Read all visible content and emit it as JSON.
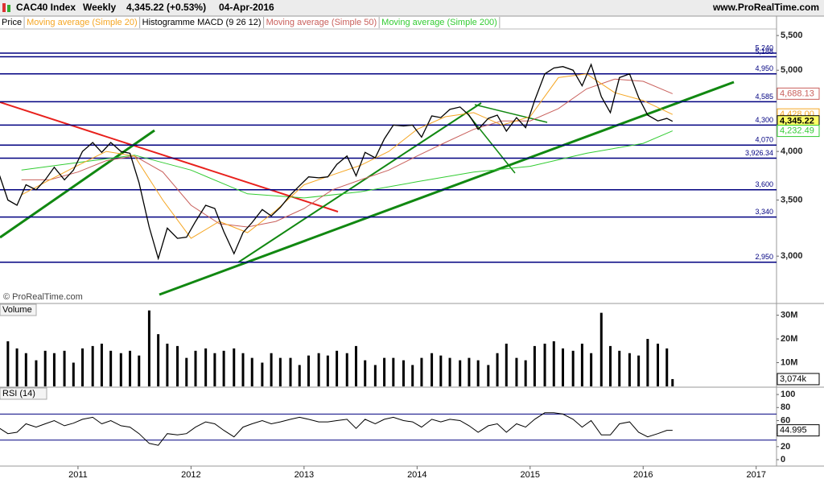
{
  "header": {
    "instrument": "CAC40 Index",
    "period": "Weekly",
    "quote": "4,345.22 (+0.53%)",
    "date": "04-Apr-2016",
    "site": "www.ProRealTime.com"
  },
  "chart_data": [
    {
      "type": "line",
      "log_scale": true,
      "watermark": "© ProRealTime.com",
      "indicator_label": "Histogramme MACD (9 26 12)",
      "xlim": [
        2010.31,
        2017.18
      ],
      "ylim": [
        2640,
        5600
      ],
      "yticks": [
        {
          "value": 5500,
          "label": "5,500"
        },
        {
          "value": 5000,
          "label": "5,000"
        },
        {
          "value": 4000,
          "label": "4,000"
        },
        {
          "value": 3500,
          "label": "3,500"
        },
        {
          "value": 3000,
          "label": "3,000"
        }
      ],
      "level_color": "#000080",
      "levels": [
        {
          "value": 5240,
          "label": "5,240"
        },
        {
          "value": 5188,
          "label": "5,188"
        },
        {
          "value": 4950,
          "label": "4,950"
        },
        {
          "value": 4585,
          "label": "4,585"
        },
        {
          "value": 4300,
          "label": "4,300"
        },
        {
          "value": 4070,
          "label": "4,070"
        },
        {
          "value": 3926.34,
          "label": "3,926.34"
        },
        {
          "value": 3600,
          "label": "3,600"
        },
        {
          "value": 3340,
          "label": "3,340"
        },
        {
          "value": 2950,
          "label": "2,950"
        }
      ],
      "series": [
        {
          "name": "Price",
          "color": "#000000",
          "x": [
            2010.29,
            2010.38,
            2010.46,
            2010.54,
            2010.63,
            2010.71,
            2010.79,
            2010.88,
            2010.96,
            2011.04,
            2011.13,
            2011.21,
            2011.29,
            2011.38,
            2011.46,
            2011.54,
            2011.63,
            2011.71,
            2011.79,
            2011.88,
            2011.96,
            2012.04,
            2012.13,
            2012.21,
            2012.29,
            2012.38,
            2012.46,
            2012.54,
            2012.63,
            2012.71,
            2012.79,
            2012.88,
            2012.96,
            2013.04,
            2013.13,
            2013.21,
            2013.29,
            2013.38,
            2013.46,
            2013.54,
            2013.63,
            2013.71,
            2013.79,
            2013.88,
            2013.96,
            2014.04,
            2014.13,
            2014.21,
            2014.29,
            2014.38,
            2014.46,
            2014.54,
            2014.63,
            2014.71,
            2014.79,
            2014.88,
            2014.96,
            2015.04,
            2015.13,
            2015.21,
            2015.29,
            2015.38,
            2015.46,
            2015.54,
            2015.63,
            2015.71,
            2015.79,
            2015.88,
            2015.96,
            2016.04,
            2016.13,
            2016.21,
            2016.26
          ],
          "values": [
            3800,
            3500,
            3450,
            3650,
            3600,
            3700,
            3830,
            3700,
            3800,
            4000,
            4100,
            3990,
            4100,
            4000,
            3980,
            3670,
            3250,
            2980,
            3240,
            3150,
            3160,
            3300,
            3450,
            3420,
            3210,
            3020,
            3200,
            3290,
            3410,
            3350,
            3430,
            3550,
            3640,
            3730,
            3720,
            3730,
            3860,
            3950,
            3740,
            3990,
            3930,
            4140,
            4300,
            4290,
            4300,
            4160,
            4410,
            4390,
            4490,
            4520,
            4420,
            4250,
            4380,
            4420,
            4230,
            4390,
            4270,
            4600,
            4950,
            5030,
            5050,
            5000,
            4790,
            5080,
            4650,
            4450,
            4900,
            4950,
            4640,
            4420,
            4350,
            4380,
            4345.22
          ]
        },
        {
          "name": "Moving average (Simple 20)",
          "color": "#f5a623",
          "x": [
            2010.5,
            2010.75,
            2011,
            2011.25,
            2011.5,
            2011.75,
            2012,
            2012.25,
            2012.5,
            2012.75,
            2013,
            2013.25,
            2013.5,
            2013.75,
            2014,
            2014.25,
            2014.5,
            2014.75,
            2015,
            2015.25,
            2015.5,
            2015.75,
            2016,
            2016.26
          ],
          "values": [
            3550,
            3700,
            3850,
            4000,
            3950,
            3500,
            3150,
            3300,
            3200,
            3400,
            3650,
            3750,
            3850,
            4000,
            4250,
            4400,
            4450,
            4300,
            4400,
            4900,
            4950,
            4700,
            4600,
            4428.0
          ]
        },
        {
          "name": "Moving average (Simple 50)",
          "color": "#c9605c",
          "x": [
            2010.5,
            2010.75,
            2011,
            2011.25,
            2011.5,
            2011.75,
            2012,
            2012.25,
            2012.5,
            2012.75,
            2013,
            2013.25,
            2013.5,
            2013.75,
            2014,
            2014.25,
            2014.5,
            2014.75,
            2015,
            2015.25,
            2015.5,
            2015.75,
            2016,
            2016.26
          ],
          "values": [
            3700,
            3700,
            3780,
            3900,
            3950,
            3780,
            3450,
            3280,
            3250,
            3300,
            3420,
            3600,
            3700,
            3800,
            3950,
            4100,
            4250,
            4350,
            4350,
            4500,
            4750,
            4880,
            4850,
            4688.13
          ]
        },
        {
          "name": "Moving average (Simple 200)",
          "color": "#33cc33",
          "x": [
            2010.5,
            2011,
            2011.5,
            2012,
            2012.5,
            2013,
            2013.5,
            2014,
            2014.5,
            2015,
            2015.5,
            2016,
            2016.26
          ],
          "values": [
            3800,
            3880,
            3960,
            3800,
            3560,
            3520,
            3580,
            3680,
            3780,
            3840,
            3980,
            4090,
            4232.49
          ]
        }
      ],
      "tags": [
        {
          "value": 4688.13,
          "label": "4,688.13",
          "color": "#c9605c",
          "background": "#ffffff"
        },
        {
          "value": 4428.0,
          "label": "4,428.00",
          "color": "#f5a623",
          "background": "#ffffff"
        },
        {
          "value": 4345.22,
          "label": "4,345.22",
          "color": "#000000",
          "background": "#ffff66"
        },
        {
          "value": 4232.49,
          "label": "4,232.49",
          "color": "#33cc33",
          "background": "#ffffff"
        }
      ]
    },
    {
      "type": "bar",
      "title": "Volume",
      "color": "#000000",
      "xlim": [
        2010.31,
        2017.18
      ],
      "ylim": [
        0,
        34600000
      ],
      "yticks": [
        {
          "value": 30000000,
          "label": "30M"
        },
        {
          "value": 20000000,
          "label": "20M"
        },
        {
          "value": 10000000,
          "label": "10M"
        }
      ],
      "x": [
        2010.29,
        2010.38,
        2010.46,
        2010.54,
        2010.63,
        2010.71,
        2010.79,
        2010.88,
        2010.96,
        2011.04,
        2011.13,
        2011.21,
        2011.29,
        2011.38,
        2011.46,
        2011.54,
        2011.63,
        2011.71,
        2011.79,
        2011.88,
        2011.96,
        2012.04,
        2012.13,
        2012.21,
        2012.29,
        2012.38,
        2012.46,
        2012.54,
        2012.63,
        2012.71,
        2012.79,
        2012.88,
        2012.96,
        2013.04,
        2013.13,
        2013.21,
        2013.29,
        2013.38,
        2013.46,
        2013.54,
        2013.63,
        2013.71,
        2013.79,
        2013.88,
        2013.96,
        2014.04,
        2014.13,
        2014.21,
        2014.29,
        2014.38,
        2014.46,
        2014.54,
        2014.63,
        2014.71,
        2014.79,
        2014.88,
        2014.96,
        2015.04,
        2015.13,
        2015.21,
        2015.29,
        2015.38,
        2015.46,
        2015.54,
        2015.63,
        2015.71,
        2015.79,
        2015.88,
        2015.96,
        2016.04,
        2016.13,
        2016.21,
        2016.26
      ],
      "values": [
        17000000,
        19000000,
        16000000,
        14000000,
        11000000,
        15000000,
        14000000,
        15000000,
        10000000,
        16000000,
        17000000,
        18000000,
        15000000,
        14000000,
        15000000,
        13000000,
        32000000,
        22000000,
        18000000,
        17000000,
        12000000,
        15000000,
        16000000,
        14000000,
        15000000,
        16000000,
        14000000,
        12000000,
        10000000,
        14000000,
        12000000,
        12000000,
        9000000,
        13000000,
        14000000,
        13000000,
        15000000,
        14000000,
        17000000,
        11000000,
        9000000,
        12000000,
        12000000,
        11000000,
        9000000,
        12000000,
        14000000,
        13000000,
        12000000,
        11000000,
        12000000,
        11000000,
        9000000,
        14000000,
        18000000,
        12000000,
        11000000,
        17000000,
        18000000,
        19000000,
        16000000,
        15000000,
        18000000,
        14000000,
        31000000,
        17000000,
        15000000,
        14000000,
        13000000,
        20000000,
        18000000,
        16000000,
        3074000
      ],
      "tags": [
        {
          "value": 3074000,
          "label": "3,074k",
          "color": "#000000",
          "background": "#ffffff"
        }
      ]
    },
    {
      "type": "line",
      "title": "RSI (14)",
      "color": "#000000",
      "xlim": [
        2010.31,
        2017.18
      ],
      "ylim": [
        -8.6,
        110
      ],
      "yticks": [
        100,
        80,
        60,
        40,
        20,
        0
      ],
      "bands": [
        70,
        30
      ],
      "band_color": "#000080",
      "xticks": [
        2011,
        2012,
        2013,
        2014,
        2015,
        2016,
        2017
      ],
      "x": [
        2010.29,
        2010.38,
        2010.46,
        2010.54,
        2010.63,
        2010.71,
        2010.79,
        2010.88,
        2010.96,
        2011.04,
        2011.13,
        2011.21,
        2011.29,
        2011.38,
        2011.46,
        2011.54,
        2011.63,
        2011.71,
        2011.79,
        2011.88,
        2011.96,
        2012.04,
        2012.13,
        2012.21,
        2012.29,
        2012.38,
        2012.46,
        2012.54,
        2012.63,
        2012.71,
        2012.79,
        2012.88,
        2012.96,
        2013.04,
        2013.13,
        2013.21,
        2013.29,
        2013.38,
        2013.46,
        2013.54,
        2013.63,
        2013.71,
        2013.79,
        2013.88,
        2013.96,
        2014.04,
        2014.13,
        2014.21,
        2014.29,
        2014.38,
        2014.46,
        2014.54,
        2014.63,
        2014.71,
        2014.79,
        2014.88,
        2014.96,
        2015.04,
        2015.13,
        2015.21,
        2015.29,
        2015.38,
        2015.46,
        2015.54,
        2015.63,
        2015.71,
        2015.79,
        2015.88,
        2015.96,
        2016.04,
        2016.13,
        2016.21,
        2016.26
      ],
      "values": [
        50,
        40,
        42,
        55,
        50,
        55,
        60,
        52,
        56,
        62,
        65,
        55,
        60,
        52,
        50,
        40,
        25,
        22,
        40,
        38,
        40,
        50,
        58,
        55,
        45,
        35,
        50,
        55,
        60,
        55,
        58,
        62,
        65,
        62,
        58,
        58,
        60,
        62,
        48,
        62,
        55,
        62,
        65,
        60,
        58,
        50,
        62,
        58,
        62,
        60,
        52,
        42,
        52,
        55,
        42,
        55,
        50,
        62,
        72,
        72,
        70,
        62,
        50,
        60,
        38,
        38,
        55,
        58,
        42,
        35,
        40,
        45,
        44.995
      ],
      "tags": [
        {
          "value": 44.995,
          "label": "44.995",
          "color": "#000000",
          "background": "#ffffff"
        }
      ]
    }
  ]
}
